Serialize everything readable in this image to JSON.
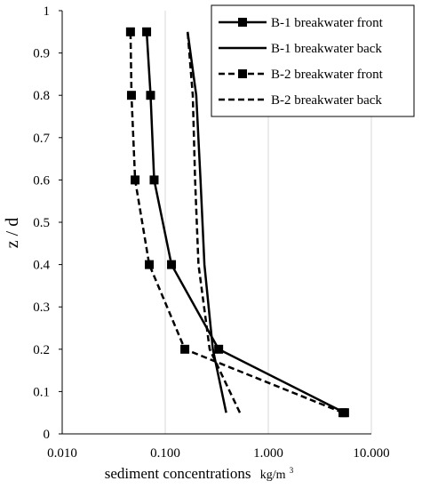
{
  "chart_data": {
    "type": "line",
    "xlabel": "sediment concentrations",
    "xunit_base": "kg/m",
    "xunit_sup": "3",
    "ylabel": "z / d",
    "xscale": "log",
    "xlim": [
      0.01,
      10
    ],
    "ylim": [
      0,
      1
    ],
    "xticks": [
      0.01,
      0.1,
      1,
      10
    ],
    "xtick_labels": [
      "0.010",
      "0.100",
      "1.000",
      "10.000"
    ],
    "yticks": [
      0,
      0.1,
      0.2,
      0.3,
      0.4,
      0.5,
      0.6,
      0.7,
      0.8,
      0.9,
      1
    ],
    "ytick_labels": [
      "0",
      "0.1",
      "0.2",
      "0.3",
      "0.4",
      "0.5",
      "0.6",
      "0.7",
      "0.8",
      "0.9",
      "1"
    ],
    "grid": "vertical",
    "legend_position": "top-right",
    "series": [
      {
        "name": "B-1 breakwater front",
        "style": "solid",
        "marker": "square",
        "points": [
          [
            5.5,
            0.05
          ],
          [
            0.33,
            0.2
          ],
          [
            0.115,
            0.4
          ],
          [
            0.078,
            0.6
          ],
          [
            0.072,
            0.8
          ],
          [
            0.066,
            0.95
          ]
        ]
      },
      {
        "name": "B-1 breakwater back",
        "style": "solid",
        "marker": "none",
        "points": [
          [
            0.39,
            0.05
          ],
          [
            0.29,
            0.2
          ],
          [
            0.24,
            0.4
          ],
          [
            0.22,
            0.6
          ],
          [
            0.2,
            0.8
          ],
          [
            0.165,
            0.95
          ]
        ]
      },
      {
        "name": "B-2 breakwater front",
        "style": "dashed",
        "marker": "square",
        "points": [
          [
            5.3,
            0.05
          ],
          [
            0.155,
            0.2
          ],
          [
            0.07,
            0.4
          ],
          [
            0.051,
            0.6
          ],
          [
            0.047,
            0.8
          ],
          [
            0.046,
            0.95
          ]
        ]
      },
      {
        "name": "B-2 breakwater back",
        "style": "dashed",
        "marker": "none",
        "points": [
          [
            0.53,
            0.05
          ],
          [
            0.27,
            0.2
          ],
          [
            0.21,
            0.4
          ],
          [
            0.195,
            0.6
          ],
          [
            0.185,
            0.8
          ],
          [
            0.165,
            0.95
          ]
        ]
      }
    ]
  }
}
